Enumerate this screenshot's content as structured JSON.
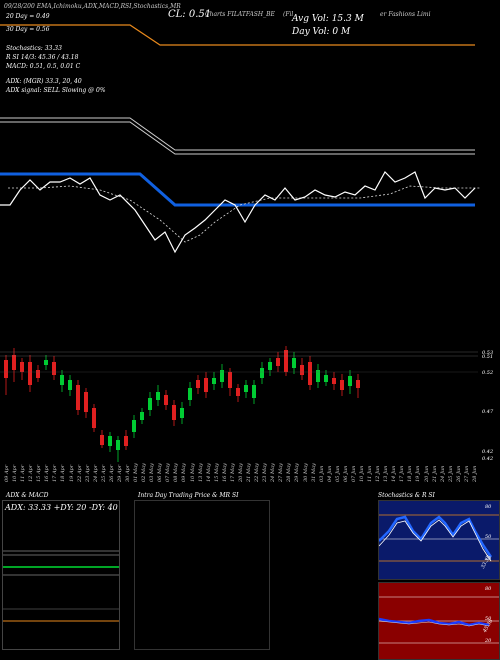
{
  "header": {
    "date_label": "09/28/200",
    "indicators": "EMA,Ichimoku,ADX,MACD,R",
    "stoch_label": "SI,Stochastics,MR",
    "close_label": "CL: 0.51",
    "charts_label": "Charts FILATFASH_BE",
    "company_label": "(Fil",
    "company_suffix": "er Fashions Limi",
    "avg_vol": "Avg Vol: 15.3 M",
    "day_vol": "Day Vol: 0   M"
  },
  "left_info": {
    "line1": "20 Day = 0.49",
    "line2": "30 Day = 0.56",
    "stochastics": "Stochastics: 33.33",
    "rsi": "R                  SI 14/3: 45.36  / 43.18",
    "macd": "MACD: 0.51,  0.5,  0.01 C",
    "adx": "ADX:                      (MGR) 33.3,  20,  40",
    "adx_signal": "ADX  signal: SELL  Slowing @ 0%"
  },
  "price_axis": [
    "0.53",
    "0.51",
    "0.52",
    "0.47",
    "0.42",
    "0.42"
  ],
  "dates": [
    "09 Apr",
    "10 Apr",
    "11 Apr",
    "12 Apr",
    "15 Apr",
    "16 Apr",
    "17 Apr",
    "18 Apr",
    "19 Apr",
    "22 Apr",
    "23 Apr",
    "24 Apr",
    "25 Apr",
    "26 Apr",
    "29 Apr",
    "30 Apr",
    "01 May",
    "02 May",
    "03 May",
    "06 May",
    "07 May",
    "08 May",
    "09 May",
    "10 May",
    "13 May",
    "14 May",
    "15 May",
    "16 May",
    "17 May",
    "20 May",
    "21 May",
    "22 May",
    "23 May",
    "24 May",
    "27 May",
    "28 May",
    "29 May",
    "30 May",
    "31 May",
    "03 Jun",
    "04 Jun",
    "05 Jun",
    "06 Jun",
    "07 Jun",
    "10 Jun",
    "11 Jun",
    "12 Jun",
    "13 Jun",
    "14 Jun",
    "17 Jun",
    "18 Jun",
    "19 Jun",
    "20 Jun",
    "21 Jun",
    "24 Jun",
    "25 Jun",
    "26 Jun",
    "27 Jun",
    "28 Jun"
  ],
  "panels": {
    "adx_title": "ADX  & MACD",
    "adx_values": "ADX: 33.33  +DY: 20  -DY: 40",
    "intraday_title": "Intra  Day Trading Price  & MR                    SI",
    "stoch_title": "Stochastics & R                SI",
    "stoch_axis": [
      "80",
      "50",
      "20"
    ],
    "stoch_value": "33.33",
    "rsi_axis": [
      "80",
      "50",
      "20"
    ],
    "rsi_value": "45.36"
  },
  "colors": {
    "ema_orange": "#e8891c",
    "blue_line": "#1060e0",
    "up_candle": "#00cc33",
    "down_candle": "#e02020",
    "rsi_bg": "#8a0000"
  }
}
